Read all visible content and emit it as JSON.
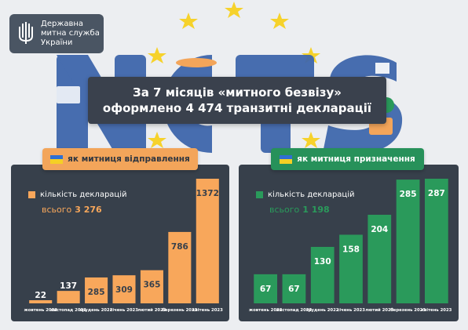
{
  "logo": {
    "lines": [
      "Державна",
      "митна служба",
      "України"
    ],
    "icon": "trident-emblem-icon"
  },
  "background": {
    "word": "NCTS"
  },
  "headline": {
    "line1": "За 7 місяців «митного безвізу»",
    "line2": "оформлено 4 474 транзитні декларації"
  },
  "colors": {
    "orange": "#f8a75b",
    "green": "#2a9a5b",
    "panel": "#37404b",
    "background": "#eceef1"
  },
  "chart_data": [
    {
      "type": "bar",
      "title": "як митниця відправлення",
      "legend": "кількість декларацій",
      "total_label": "всього",
      "total": "3 276",
      "categories": [
        "жовтень 2022",
        "листопад 2022",
        "грудень 2022",
        "січень 2023",
        "лютий 2023",
        "березень 2023",
        "квітень 2023"
      ],
      "values": [
        22,
        137,
        285,
        309,
        365,
        786,
        1372
      ],
      "color": "#f8a75b"
    },
    {
      "type": "bar",
      "title": "як митниця призначення",
      "legend": "кількість декларацій",
      "total_label": "всього",
      "total": "1 198",
      "categories": [
        "жовтень 2022",
        "листопад 2022",
        "грудень 2022",
        "січень 2023",
        "лютий 2023",
        "березень 2023",
        "квітень 2023"
      ],
      "values": [
        67,
        67,
        130,
        158,
        204,
        285,
        287
      ],
      "color": "#2a9a5b"
    }
  ]
}
